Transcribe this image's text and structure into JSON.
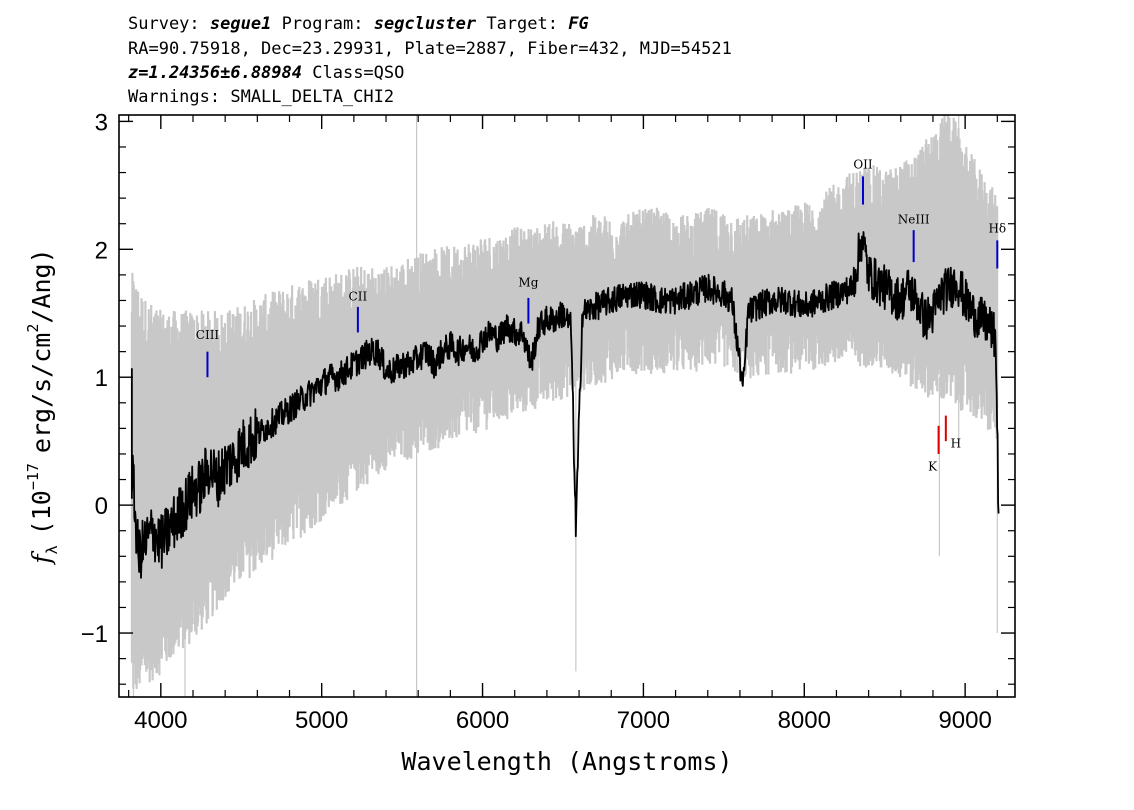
{
  "header": {
    "line1": {
      "survey_label": "Survey:",
      "survey_value": "segue1",
      "program_label": "Program:",
      "program_value": "segcluster",
      "target_label": "Target:",
      "target_value": "FG"
    },
    "line2": "RA=90.75918, Dec=23.29931, Plate=2887, Fiber=432, MJD=54521",
    "line3": {
      "redshift": "z=1.24356±6.88984",
      "class": "Class=QSO"
    },
    "line4": "Warnings: SMALL_DELTA_CHI2"
  },
  "chart_data": {
    "type": "line",
    "xlabel": "Wavelength (Angstroms)",
    "ylabel": {
      "symbol": "f",
      "subscript": "λ",
      "text_a": "(10",
      "exp1": "−17",
      "text_b": "erg/s/cm",
      "exp2": "2",
      "text_c": "/Ang)"
    },
    "xlim": [
      3740,
      9310
    ],
    "ylim": [
      -1.5,
      3.05
    ],
    "x_ticks": [
      {
        "value": 4000,
        "label": "4000"
      },
      {
        "value": 5000,
        "label": "5000"
      },
      {
        "value": 6000,
        "label": "6000"
      },
      {
        "value": 7000,
        "label": "7000"
      },
      {
        "value": 8000,
        "label": "8000"
      },
      {
        "value": 9000,
        "label": "9000"
      }
    ],
    "y_ticks": [
      {
        "value": -1,
        "label": "−1"
      },
      {
        "value": 0,
        "label": "0"
      },
      {
        "value": 1,
        "label": "1"
      },
      {
        "value": 2,
        "label": "2"
      },
      {
        "value": 3,
        "label": "3"
      }
    ],
    "colors": {
      "flux": "#000000",
      "error_band": "#c8c8c8",
      "emission_marker": "#0000cc",
      "absorption_marker": "#dd0000"
    },
    "series": [
      {
        "role": "flux",
        "x": [
          3820,
          3860,
          3900,
          3950,
          4000,
          4050,
          4100,
          4150,
          4200,
          4250,
          4300,
          4350,
          4400,
          4450,
          4500,
          4550,
          4600,
          4650,
          4700,
          4750,
          4800,
          4850,
          4900,
          4950,
          5000,
          5050,
          5100,
          5150,
          5200,
          5250,
          5300,
          5350,
          5400,
          5450,
          5500,
          5550,
          5600,
          5650,
          5700,
          5750,
          5800,
          5850,
          5900,
          5950,
          6000,
          6050,
          6100,
          6150,
          6200,
          6250,
          6300,
          6350,
          6400,
          6450,
          6500,
          6550,
          6580,
          6620,
          6700,
          6800,
          6900,
          7000,
          7100,
          7200,
          7300,
          7400,
          7500,
          7550,
          7620,
          7650,
          7700,
          7800,
          7900,
          8000,
          8100,
          8200,
          8300,
          8360,
          8400,
          8450,
          8500,
          8550,
          8600,
          8650,
          8700,
          8750,
          8800,
          8850,
          8900,
          8950,
          9000,
          9050,
          9100,
          9150,
          9190,
          9210
        ],
        "values": [
          0.3,
          -0.4,
          -0.3,
          -0.2,
          -0.3,
          -0.2,
          -0.1,
          0.0,
          0.1,
          0.15,
          0.3,
          0.2,
          0.3,
          0.35,
          0.45,
          0.5,
          0.55,
          0.6,
          0.65,
          0.7,
          0.75,
          0.8,
          0.85,
          0.9,
          0.95,
          1.0,
          1.0,
          1.05,
          1.1,
          1.15,
          1.2,
          1.2,
          1.05,
          1.05,
          1.1,
          1.1,
          1.15,
          1.2,
          1.1,
          1.2,
          1.25,
          1.2,
          1.25,
          1.2,
          1.3,
          1.35,
          1.3,
          1.4,
          1.35,
          1.35,
          1.1,
          1.4,
          1.45,
          1.45,
          1.5,
          1.4,
          -0.2,
          1.5,
          1.55,
          1.6,
          1.65,
          1.65,
          1.6,
          1.6,
          1.65,
          1.7,
          1.65,
          1.6,
          0.9,
          1.5,
          1.55,
          1.6,
          1.6,
          1.55,
          1.6,
          1.65,
          1.7,
          2.1,
          1.8,
          1.75,
          1.7,
          1.65,
          1.6,
          1.7,
          1.6,
          1.45,
          1.5,
          1.65,
          1.7,
          1.75,
          1.6,
          1.5,
          1.45,
          1.4,
          1.3,
          -0.2
        ]
      },
      {
        "role": "error_band",
        "x": [
          3820,
          3900,
          4000,
          4100,
          4200,
          4300,
          4400,
          4500,
          4600,
          4700,
          4800,
          4900,
          5000,
          5100,
          5200,
          5300,
          5400,
          5500,
          5600,
          5700,
          5800,
          5900,
          6000,
          6100,
          6200,
          6300,
          6400,
          6500,
          6600,
          6700,
          6800,
          6900,
          7000,
          7100,
          7200,
          7300,
          7400,
          7500,
          7600,
          7700,
          7800,
          7900,
          8000,
          8100,
          8200,
          8300,
          8400,
          8500,
          8600,
          8700,
          8800,
          8900,
          9000,
          9100,
          9200
        ],
        "lower": [
          -1.3,
          -1.2,
          -1.1,
          -0.95,
          -0.85,
          -0.7,
          -0.5,
          -0.4,
          -0.3,
          -0.2,
          -0.1,
          0.0,
          0.1,
          0.2,
          0.3,
          0.4,
          0.5,
          0.55,
          0.6,
          0.65,
          0.7,
          0.75,
          0.8,
          0.85,
          0.9,
          0.95,
          1.0,
          1.05,
          1.1,
          1.15,
          1.2,
          1.25,
          1.25,
          1.25,
          1.25,
          1.25,
          1.3,
          1.3,
          1.2,
          1.2,
          1.25,
          1.25,
          1.25,
          1.3,
          1.3,
          1.3,
          1.3,
          1.25,
          1.2,
          1.1,
          1.05,
          1.0,
          0.95,
          0.85,
          0.7
        ],
        "upper": [
          1.6,
          1.4,
          1.3,
          1.3,
          1.3,
          1.3,
          1.3,
          1.35,
          1.4,
          1.45,
          1.5,
          1.55,
          1.6,
          1.6,
          1.65,
          1.65,
          1.65,
          1.7,
          1.75,
          1.8,
          1.8,
          1.85,
          1.9,
          1.9,
          1.95,
          1.95,
          2.0,
          2.0,
          2.0,
          2.05,
          2.05,
          2.05,
          2.1,
          2.1,
          2.05,
          2.05,
          2.1,
          2.1,
          2.05,
          2.05,
          2.1,
          2.1,
          2.15,
          2.2,
          2.3,
          2.4,
          2.45,
          2.4,
          2.45,
          2.55,
          2.7,
          2.9,
          2.6,
          2.4,
          2.2
        ]
      }
    ],
    "line_markers": [
      {
        "label": "CIII",
        "x": 4290,
        "y1": 1.0,
        "y2": 1.2,
        "kind": "emission",
        "label_y": 1.3
      },
      {
        "label": "CII",
        "x": 5225,
        "y1": 1.35,
        "y2": 1.55,
        "kind": "emission",
        "label_y": 1.6
      },
      {
        "label": "Mg",
        "x": 6285,
        "y1": 1.42,
        "y2": 1.62,
        "kind": "emission",
        "label_y": 1.71
      },
      {
        "label": "OII",
        "x": 8365,
        "y1": 2.35,
        "y2": 2.57,
        "kind": "emission",
        "label_y": 2.63
      },
      {
        "label": "NeIII",
        "x": 8680,
        "y1": 1.9,
        "y2": 2.15,
        "kind": "emission",
        "label_y": 2.2
      },
      {
        "label": "Hδ",
        "x": 9200,
        "y1": 1.85,
        "y2": 2.07,
        "kind": "emission",
        "label_y": 2.13
      },
      {
        "label": "K",
        "x": 8835,
        "y1": 0.4,
        "y2": 0.62,
        "kind": "absorption",
        "label_y": 0.27
      },
      {
        "label": "H",
        "x": 8880,
        "y1": 0.5,
        "y2": 0.7,
        "kind": "absorption",
        "label_y": 0.45
      }
    ]
  }
}
